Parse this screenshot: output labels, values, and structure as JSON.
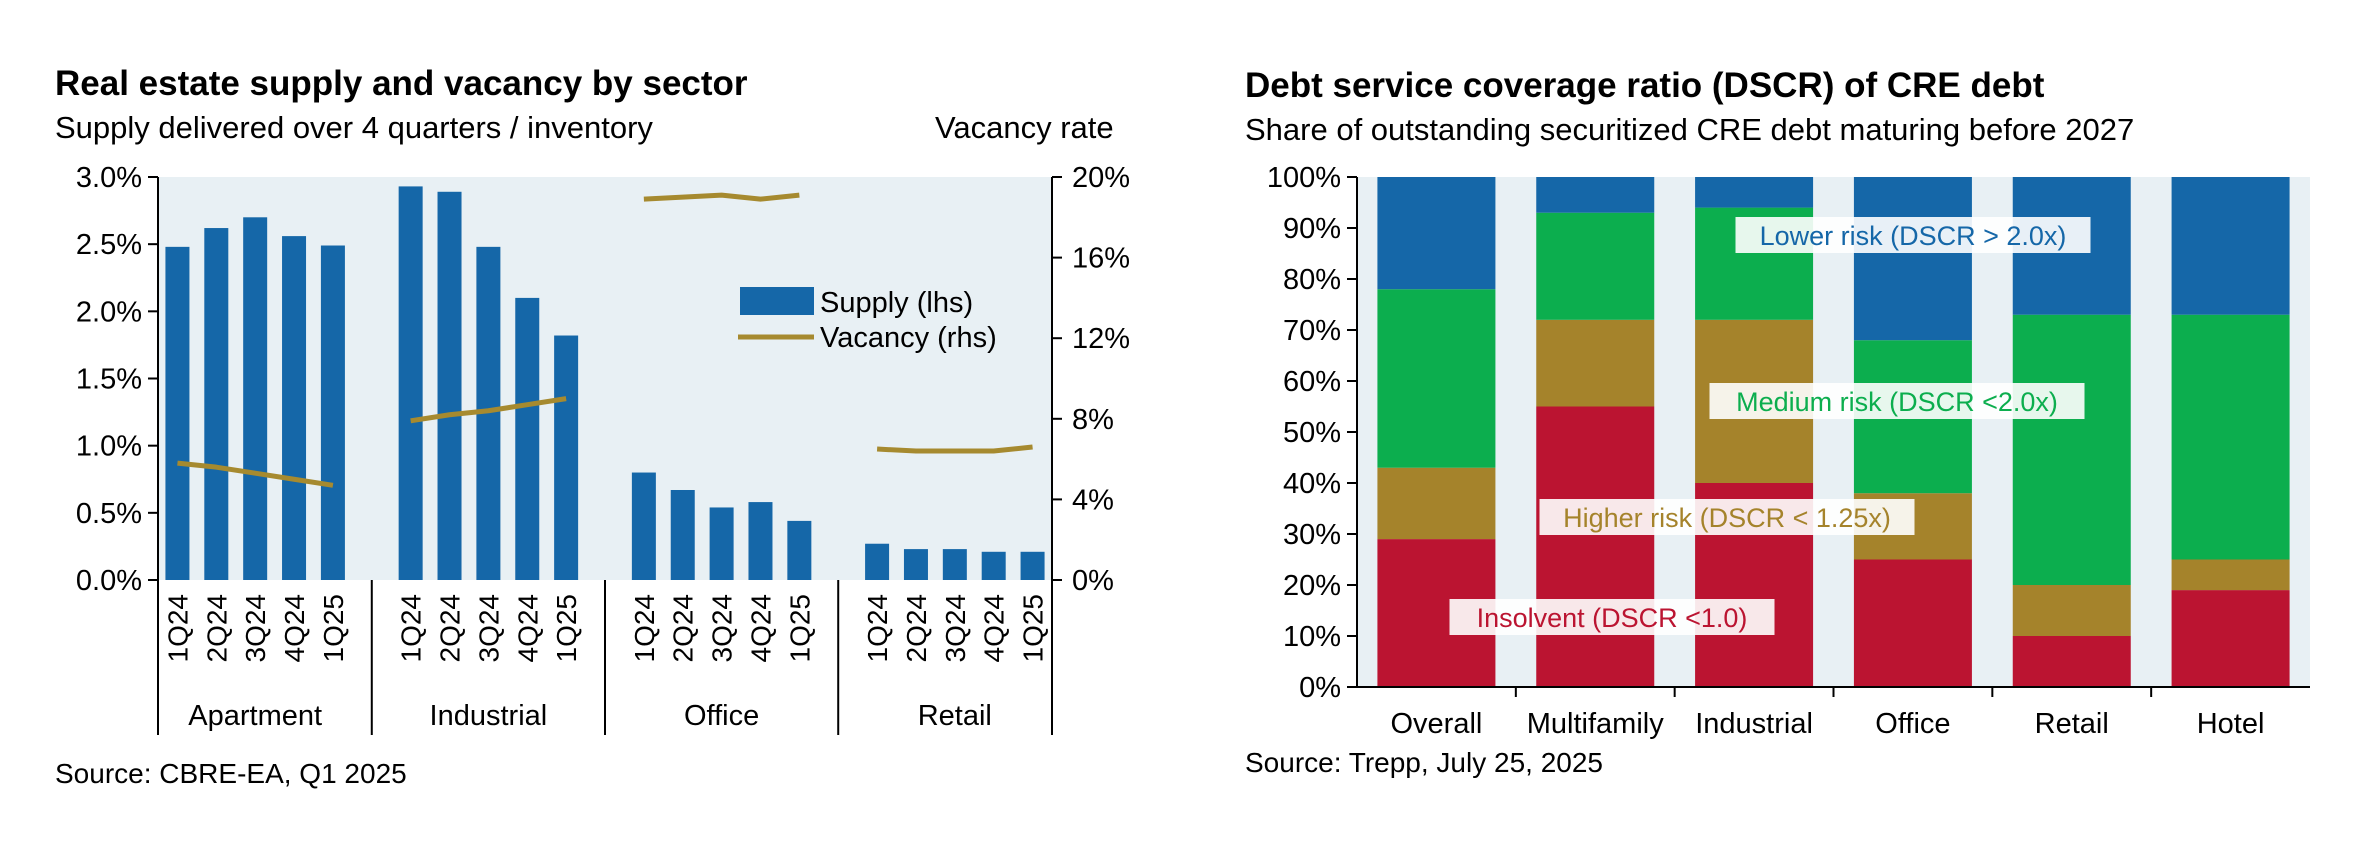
{
  "left": {
    "title": "Real estate supply and vacancy by sector",
    "subtitle": "Supply delivered over 4 quarters / inventory",
    "right_axis_label": "Vacancy rate",
    "source": "Source: CBRE-EA, Q1 2025"
  },
  "right": {
    "title": "Debt service coverage ratio (DSCR) of CRE debt",
    "subtitle": "Share of outstanding securitized CRE debt maturing before 2027",
    "source": "Source: Trepp, July 25, 2025"
  },
  "colors": {
    "supply_bar": "#1567a8",
    "vacancy_line": "#a68a2f",
    "plot_bg": "#e8f0f4",
    "insolvent": "#bb1431",
    "higher": "#a5832b",
    "medium": "#0cae4e",
    "lower": "#1567a8"
  },
  "chart_data": [
    {
      "type": "bar",
      "title": "Real estate supply and vacancy by sector",
      "subtitle": "Supply delivered over 4 quarters / inventory",
      "y_left": {
        "ticks": [
          "0.0%",
          "0.5%",
          "1.0%",
          "1.5%",
          "2.0%",
          "2.5%",
          "3.0%"
        ],
        "range": [
          0,
          3.0
        ]
      },
      "y_right": {
        "label": "Vacancy rate",
        "ticks": [
          "0%",
          "4%",
          "8%",
          "12%",
          "16%",
          "20%"
        ],
        "range": [
          0,
          20
        ]
      },
      "legend": {
        "position": "upper-right",
        "entries": [
          "Supply (lhs)",
          "Vacancy (rhs)"
        ]
      },
      "groups": [
        {
          "name": "Apartment",
          "quarters": [
            "1Q24",
            "2Q24",
            "3Q24",
            "4Q24",
            "1Q25"
          ],
          "supply": [
            2.48,
            2.62,
            2.7,
            2.56,
            2.49
          ],
          "vacancy": [
            5.8,
            5.6,
            5.3,
            5.0,
            4.7
          ]
        },
        {
          "name": "Industrial",
          "quarters": [
            "1Q24",
            "2Q24",
            "3Q24",
            "4Q24",
            "1Q25"
          ],
          "supply": [
            2.93,
            2.89,
            2.48,
            2.1,
            1.82
          ],
          "vacancy": [
            7.9,
            8.2,
            8.4,
            8.7,
            9.0
          ]
        },
        {
          "name": "Office",
          "quarters": [
            "1Q24",
            "2Q24",
            "3Q24",
            "4Q24",
            "1Q25"
          ],
          "supply": [
            0.8,
            0.67,
            0.54,
            0.58,
            0.44
          ],
          "vacancy": [
            18.9,
            19.0,
            19.1,
            18.9,
            19.1
          ]
        },
        {
          "name": "Retail",
          "quarters": [
            "1Q24",
            "2Q24",
            "3Q24",
            "4Q24",
            "1Q25"
          ],
          "supply": [
            0.27,
            0.23,
            0.23,
            0.21,
            0.21
          ],
          "vacancy": [
            6.5,
            6.4,
            6.4,
            6.4,
            6.6
          ]
        }
      ]
    },
    {
      "type": "bar",
      "stacked": true,
      "title": "Debt service coverage ratio (DSCR) of CRE debt",
      "subtitle": "Share of outstanding securitized CRE debt maturing before 2027",
      "categories": [
        "Overall",
        "Multifamily",
        "Industrial",
        "Office",
        "Retail",
        "Hotel"
      ],
      "y_ticks": [
        "0%",
        "10%",
        "20%",
        "30%",
        "40%",
        "50%",
        "60%",
        "70%",
        "80%",
        "90%",
        "100%"
      ],
      "ylim": [
        0,
        100
      ],
      "series": [
        {
          "name": "Insolvent (DSCR <1.0)",
          "color_key": "insolvent",
          "values": [
            29,
            55,
            40,
            25,
            10,
            19
          ]
        },
        {
          "name": "Higher risk (DSCR < 1.25x)",
          "color_key": "higher",
          "values": [
            14,
            17,
            32,
            13,
            10,
            6
          ]
        },
        {
          "name": "Medium risk (DSCR <2.0x)",
          "color_key": "medium",
          "values": [
            35,
            21,
            22,
            30,
            53,
            48
          ]
        },
        {
          "name": "Lower risk (DSCR > 2.0x)",
          "color_key": "lower",
          "values": [
            22,
            7,
            6,
            32,
            27,
            27
          ]
        }
      ]
    }
  ]
}
